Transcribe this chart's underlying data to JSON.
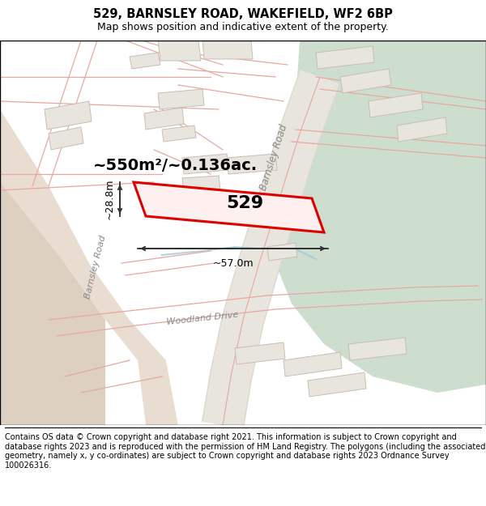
{
  "title": "529, BARNSLEY ROAD, WAKEFIELD, WF2 6BP",
  "subtitle": "Map shows position and indicative extent of the property.",
  "footer": "Contains OS data © Crown copyright and database right 2021. This information is subject to Crown copyright and database rights 2023 and is reproduced with the permission of HM Land Registry. The polygons (including the associated geometry, namely x, y co-ordinates) are subject to Crown copyright and database rights 2023 Ordnance Survey 100026316.",
  "bg_color": "#f5f3f0",
  "white_area": "#ffffff",
  "tan_area": "#e8ddd0",
  "green_area_color": "#cddece",
  "building_fill": "#e8e4de",
  "building_stroke": "#c8beb4",
  "highlight_fill": "#fff0f0",
  "highlight_stroke": "#dd0000",
  "road_line_color": "#e8a8a0",
  "road_fill": "#f0ebe4",
  "blue_line": "#a0c8d8",
  "area_text": "~550m²/~0.136ac.",
  "plot_number": "529",
  "dim_width": "~57.0m",
  "dim_height": "~28.8m",
  "barnsley_road_label": "Barnsley Road",
  "barnsley_road_label2": "Barnsley Road",
  "woodland_drive_label": "Woodland Drive",
  "title_fontsize": 10.5,
  "subtitle_fontsize": 9,
  "footer_fontsize": 7,
  "map_label_color": "#888888"
}
